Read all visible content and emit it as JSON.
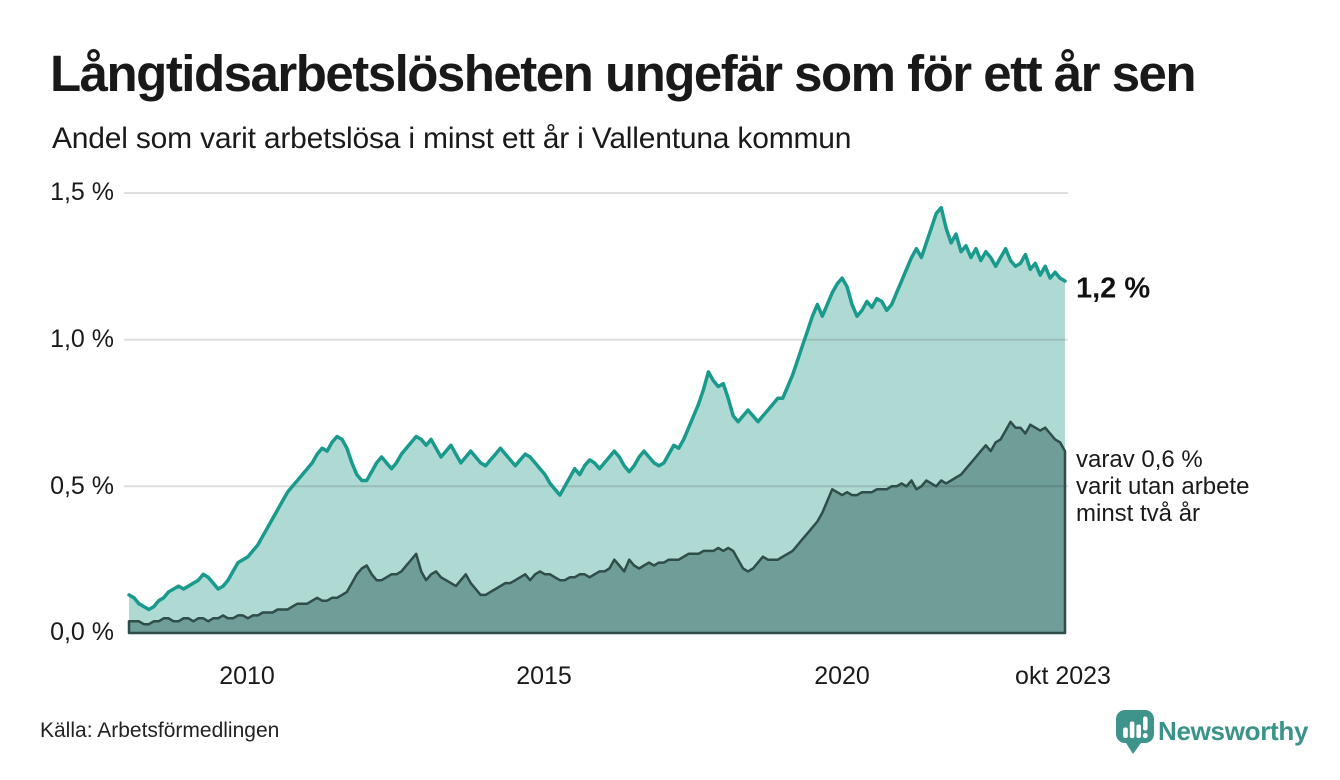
{
  "header": {
    "title": "Långtidsarbetslösheten ungefär som för ett år sen",
    "subtitle": "Andel som varit arbetslösa i minst ett år i Vallentuna kommun"
  },
  "footer": {
    "source": "Källa: Arbetsförmedlingen",
    "brand": "Newsworthy",
    "brand_color": "#3a9388"
  },
  "annotations": {
    "total_end_label": "1,2 %",
    "two_years_line1": "varav 0,6 %",
    "two_years_line2": "varit utan arbete",
    "two_years_line3": "minst två år"
  },
  "chart_data": {
    "type": "area",
    "title": "Långtidsarbetslösheten ungefär som för ett år sen",
    "subtitle": "Andel som varit arbetslösa i minst ett år i Vallentuna kommun",
    "unit": "%",
    "frequency": "monthly",
    "x_start": "2008-01",
    "x_end": "2023-10",
    "ylim": [
      0,
      1.5
    ],
    "grid": "horizontal",
    "ytick_labels": [
      "0,0 %",
      "0,5 %",
      "1,0 %",
      "1,5 %"
    ],
    "ytick_values": [
      0,
      0.5,
      1.0,
      1.5
    ],
    "xtick_labels": [
      "2010",
      "2015",
      "2020",
      "okt 2023"
    ],
    "background_color": "#ffffff",
    "gridline_color": "#dcdcdc",
    "series": [
      {
        "name": "Arbetslösa minst ett år",
        "end_value_pct": 1.2,
        "line_color": "#1a9a8c",
        "fill_color": "#afdad4",
        "values_pct": [
          0.13,
          0.12,
          0.1,
          0.09,
          0.08,
          0.09,
          0.11,
          0.12,
          0.14,
          0.15,
          0.16,
          0.15,
          0.16,
          0.17,
          0.18,
          0.2,
          0.19,
          0.17,
          0.15,
          0.16,
          0.18,
          0.21,
          0.24,
          0.25,
          0.26,
          0.28,
          0.3,
          0.33,
          0.36,
          0.39,
          0.42,
          0.45,
          0.48,
          0.5,
          0.52,
          0.54,
          0.56,
          0.58,
          0.61,
          0.63,
          0.62,
          0.65,
          0.67,
          0.66,
          0.63,
          0.58,
          0.54,
          0.52,
          0.52,
          0.55,
          0.58,
          0.6,
          0.58,
          0.56,
          0.58,
          0.61,
          0.63,
          0.65,
          0.67,
          0.66,
          0.64,
          0.66,
          0.63,
          0.6,
          0.62,
          0.64,
          0.61,
          0.58,
          0.6,
          0.62,
          0.6,
          0.58,
          0.57,
          0.59,
          0.61,
          0.63,
          0.61,
          0.59,
          0.57,
          0.59,
          0.61,
          0.6,
          0.58,
          0.56,
          0.54,
          0.51,
          0.49,
          0.47,
          0.5,
          0.53,
          0.56,
          0.54,
          0.57,
          0.59,
          0.58,
          0.56,
          0.58,
          0.6,
          0.62,
          0.6,
          0.57,
          0.55,
          0.57,
          0.6,
          0.62,
          0.6,
          0.58,
          0.57,
          0.58,
          0.61,
          0.64,
          0.63,
          0.66,
          0.7,
          0.74,
          0.78,
          0.83,
          0.89,
          0.86,
          0.84,
          0.85,
          0.8,
          0.74,
          0.72,
          0.74,
          0.76,
          0.74,
          0.72,
          0.74,
          0.76,
          0.78,
          0.8,
          0.8,
          0.84,
          0.88,
          0.93,
          0.98,
          1.03,
          1.08,
          1.12,
          1.08,
          1.12,
          1.16,
          1.19,
          1.21,
          1.18,
          1.12,
          1.08,
          1.1,
          1.13,
          1.11,
          1.14,
          1.13,
          1.1,
          1.12,
          1.16,
          1.2,
          1.24,
          1.28,
          1.31,
          1.28,
          1.33,
          1.38,
          1.43,
          1.45,
          1.38,
          1.33,
          1.36,
          1.3,
          1.32,
          1.28,
          1.31,
          1.27,
          1.3,
          1.28,
          1.25,
          1.28,
          1.31,
          1.27,
          1.25,
          1.26,
          1.29,
          1.24,
          1.26,
          1.22,
          1.25,
          1.21,
          1.23,
          1.21,
          1.2
        ]
      },
      {
        "name": "varav utan arbete minst två år",
        "end_value_pct": 0.6,
        "line_color": "#2f4d49",
        "fill_color": "#6f9d98",
        "values_pct": [
          0.04,
          0.04,
          0.04,
          0.03,
          0.03,
          0.04,
          0.04,
          0.05,
          0.05,
          0.04,
          0.04,
          0.05,
          0.05,
          0.04,
          0.05,
          0.05,
          0.04,
          0.05,
          0.05,
          0.06,
          0.05,
          0.05,
          0.06,
          0.06,
          0.05,
          0.06,
          0.06,
          0.07,
          0.07,
          0.07,
          0.08,
          0.08,
          0.08,
          0.09,
          0.1,
          0.1,
          0.1,
          0.11,
          0.12,
          0.11,
          0.11,
          0.12,
          0.12,
          0.13,
          0.14,
          0.17,
          0.2,
          0.22,
          0.23,
          0.2,
          0.18,
          0.18,
          0.19,
          0.2,
          0.2,
          0.21,
          0.23,
          0.25,
          0.27,
          0.21,
          0.18,
          0.2,
          0.21,
          0.19,
          0.18,
          0.17,
          0.16,
          0.18,
          0.2,
          0.17,
          0.15,
          0.13,
          0.13,
          0.14,
          0.15,
          0.16,
          0.17,
          0.17,
          0.18,
          0.19,
          0.2,
          0.18,
          0.2,
          0.21,
          0.2,
          0.2,
          0.19,
          0.18,
          0.18,
          0.19,
          0.19,
          0.2,
          0.2,
          0.19,
          0.2,
          0.21,
          0.21,
          0.22,
          0.25,
          0.23,
          0.21,
          0.25,
          0.23,
          0.22,
          0.23,
          0.24,
          0.23,
          0.24,
          0.24,
          0.25,
          0.25,
          0.25,
          0.26,
          0.27,
          0.27,
          0.27,
          0.28,
          0.28,
          0.28,
          0.29,
          0.28,
          0.29,
          0.28,
          0.25,
          0.22,
          0.21,
          0.22,
          0.24,
          0.26,
          0.25,
          0.25,
          0.25,
          0.26,
          0.27,
          0.28,
          0.3,
          0.32,
          0.34,
          0.36,
          0.38,
          0.41,
          0.45,
          0.49,
          0.48,
          0.47,
          0.48,
          0.47,
          0.47,
          0.48,
          0.48,
          0.48,
          0.49,
          0.49,
          0.49,
          0.5,
          0.5,
          0.51,
          0.5,
          0.52,
          0.49,
          0.5,
          0.52,
          0.51,
          0.5,
          0.52,
          0.51,
          0.52,
          0.53,
          0.54,
          0.56,
          0.58,
          0.6,
          0.62,
          0.64,
          0.62,
          0.65,
          0.66,
          0.69,
          0.72,
          0.7,
          0.7,
          0.68,
          0.71,
          0.7,
          0.69,
          0.7,
          0.68,
          0.66,
          0.65,
          0.62
        ]
      }
    ]
  }
}
